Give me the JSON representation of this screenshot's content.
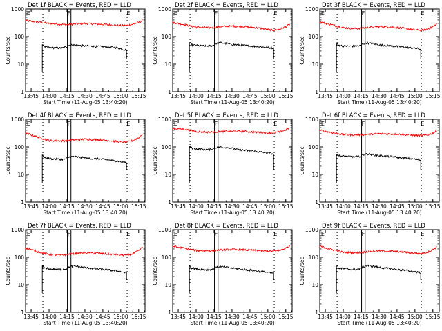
{
  "chart_data": [
    {
      "type": "line",
      "title": "Det 1f BLACK = Events, RED = LLD",
      "xlabel": "Start Time (11-Aug-05 13:40:20)",
      "ylabel": "Counts/sec",
      "y_scale": "log",
      "ylim": [
        1,
        1000
      ],
      "y_tick_labels": [
        "1",
        "10",
        "100",
        "1000"
      ],
      "x_range_min": [
        0,
        100
      ],
      "x_tick_labels": [
        "13:45",
        "14:00",
        "14:15",
        "14:30",
        "14:45",
        "15:00",
        "15:15"
      ],
      "x_ticks_min": [
        4.67,
        19.67,
        34.67,
        49.67,
        64.67,
        79.67,
        94.67
      ],
      "flag_labels": [
        "E",
        "F",
        "E"
      ],
      "series": [
        {
          "color": "#ff0000",
          "x": [
            0,
            10,
            20,
            30,
            35,
            40,
            50,
            60,
            70,
            80,
            85,
            90,
            95,
            98
          ],
          "y": [
            380,
            340,
            300,
            280,
            270,
            285,
            300,
            285,
            270,
            250,
            255,
            280,
            330,
            380
          ]
        },
        {
          "color": "#000000",
          "x": [
            14,
            16,
            20,
            25,
            30,
            34,
            36,
            40,
            45,
            50,
            55,
            60,
            65,
            70,
            75,
            80,
            84.5
          ],
          "y": [
            55,
            42,
            40,
            39,
            38,
            42,
            48,
            50,
            48,
            46,
            45,
            44,
            43,
            42,
            40,
            36,
            32
          ]
        }
      ],
      "vline_dotted_min": [
        14.5,
        85
      ],
      "vline_solid_min": [
        35,
        38
      ]
    },
    {
      "type": "line",
      "title": "Det 2f BLACK = Events, RED = LLD",
      "xlabel": "Start Time (11-Aug-05 13:40:20)",
      "ylabel": "Counts/sec",
      "y_scale": "log",
      "ylim": [
        1,
        1000
      ],
      "y_tick_labels": [
        "1",
        "10",
        "100",
        "1000"
      ],
      "x_range_min": [
        0,
        100
      ],
      "x_tick_labels": [
        "13:45",
        "14:00",
        "14:15",
        "14:30",
        "14:45",
        "15:00",
        "15:15"
      ],
      "x_ticks_min": [
        4.67,
        19.67,
        34.67,
        49.67,
        64.67,
        79.67,
        94.67
      ],
      "flag_labels": [
        "E",
        "F",
        "E"
      ],
      "series": [
        {
          "color": "#ff0000",
          "x": [
            0,
            10,
            20,
            30,
            35,
            40,
            50,
            60,
            70,
            80,
            85,
            90,
            95,
            98
          ],
          "y": [
            330,
            270,
            220,
            210,
            215,
            230,
            240,
            230,
            210,
            180,
            170,
            190,
            230,
            280
          ]
        },
        {
          "color": "#000000",
          "x": [
            14,
            16,
            20,
            25,
            30,
            34,
            36,
            40,
            45,
            50,
            55,
            60,
            65,
            70,
            75,
            80,
            84.5
          ],
          "y": [
            60,
            50,
            48,
            46,
            46,
            48,
            55,
            60,
            56,
            52,
            50,
            48,
            46,
            44,
            42,
            40,
            38
          ]
        }
      ],
      "vline_dotted_min": [
        14.5,
        85
      ],
      "vline_solid_min": [
        35,
        38
      ]
    },
    {
      "type": "line",
      "title": "Det 3f BLACK = Events, RED = LLD",
      "xlabel": "Start Time (11-Aug-05 13:40:20)",
      "ylabel": "Counts/sec",
      "y_scale": "log",
      "ylim": [
        1,
        1000
      ],
      "y_tick_labels": [
        "1",
        "10",
        "100",
        "1000"
      ],
      "x_range_min": [
        0,
        100
      ],
      "x_tick_labels": [
        "13:45",
        "14:00",
        "14:15",
        "14:30",
        "14:45",
        "15:00",
        "15:15"
      ],
      "x_ticks_min": [
        4.67,
        19.67,
        34.67,
        49.67,
        64.67,
        79.67,
        94.67
      ],
      "flag_labels": [
        "E",
        "F",
        "E"
      ],
      "series": [
        {
          "color": "#ff0000",
          "x": [
            0,
            10,
            20,
            30,
            35,
            40,
            50,
            60,
            70,
            80,
            85,
            90,
            95,
            98
          ],
          "y": [
            340,
            270,
            210,
            195,
            200,
            215,
            230,
            225,
            200,
            175,
            170,
            185,
            230,
            290
          ]
        },
        {
          "color": "#000000",
          "x": [
            14,
            16,
            20,
            25,
            30,
            34,
            36,
            40,
            45,
            50,
            55,
            60,
            65,
            70,
            75,
            80,
            84.5
          ],
          "y": [
            55,
            48,
            46,
            45,
            45,
            47,
            55,
            58,
            55,
            50,
            48,
            46,
            44,
            42,
            40,
            38,
            35
          ]
        }
      ],
      "vline_dotted_min": [
        14.5,
        85
      ],
      "vline_solid_min": [
        35,
        38
      ]
    },
    {
      "type": "line",
      "title": "Det 4f BLACK = Events, RED = LLD",
      "xlabel": "Start Time (11-Aug-05 13:40:20)",
      "ylabel": "Counts/sec",
      "y_scale": "log",
      "ylim": [
        1,
        1000
      ],
      "y_tick_labels": [
        "1",
        "10",
        "100",
        "1000"
      ],
      "x_range_min": [
        0,
        100
      ],
      "x_tick_labels": [
        "13:45",
        "14:00",
        "14:15",
        "14:30",
        "14:45",
        "15:00",
        "15:15"
      ],
      "x_ticks_min": [
        4.67,
        19.67,
        34.67,
        49.67,
        64.67,
        79.67,
        94.67
      ],
      "flag_labels": [
        "E",
        "F",
        "E"
      ],
      "series": [
        {
          "color": "#ff0000",
          "x": [
            0,
            10,
            20,
            30,
            35,
            40,
            50,
            60,
            70,
            80,
            85,
            90,
            95,
            98
          ],
          "y": [
            320,
            230,
            170,
            165,
            170,
            180,
            190,
            185,
            170,
            150,
            150,
            170,
            220,
            300
          ]
        },
        {
          "color": "#000000",
          "x": [
            14,
            16,
            20,
            25,
            30,
            34,
            36,
            40,
            45,
            50,
            55,
            60,
            65,
            70,
            75,
            80,
            84.5
          ],
          "y": [
            50,
            40,
            38,
            36,
            35,
            37,
            42,
            45,
            42,
            40,
            38,
            37,
            35,
            33,
            31,
            29,
            27
          ]
        }
      ],
      "vline_dotted_min": [
        14.5,
        85
      ],
      "vline_solid_min": [
        35,
        38
      ]
    },
    {
      "type": "line",
      "title": "Det 5f BLACK = Events, RED = LLD",
      "xlabel": "Start Time (11-Aug-05 13:40:20)",
      "ylabel": "Counts/sec",
      "y_scale": "log",
      "ylim": [
        1,
        1000
      ],
      "y_tick_labels": [
        "1",
        "10",
        "100",
        "1000"
      ],
      "x_range_min": [
        0,
        100
      ],
      "x_tick_labels": [
        "13:45",
        "14:00",
        "14:15",
        "14:30",
        "14:45",
        "15:00",
        "15:15"
      ],
      "x_ticks_min": [
        4.67,
        19.67,
        34.67,
        49.67,
        64.67,
        79.67,
        94.67
      ],
      "flag_labels": [
        "E",
        "F",
        "E"
      ],
      "series": [
        {
          "color": "#ff0000",
          "x": [
            0,
            10,
            20,
            30,
            35,
            40,
            50,
            60,
            70,
            80,
            85,
            90,
            95,
            98
          ],
          "y": [
            470,
            440,
            360,
            340,
            345,
            360,
            370,
            365,
            340,
            320,
            325,
            350,
            420,
            480
          ]
        },
        {
          "color": "#000000",
          "x": [
            14,
            16,
            20,
            25,
            30,
            34,
            36,
            40,
            45,
            50,
            55,
            60,
            65,
            70,
            75,
            80,
            84.5
          ],
          "y": [
            105,
            90,
            85,
            82,
            80,
            85,
            95,
            100,
            95,
            88,
            80,
            75,
            72,
            68,
            64,
            60,
            55
          ]
        }
      ],
      "vline_dotted_min": [
        14.5,
        85
      ],
      "vline_solid_min": [
        35,
        38
      ]
    },
    {
      "type": "line",
      "title": "Det 6f BLACK = Events, RED = LLD",
      "xlabel": "Start Time (11-Aug-05 13:40:20)",
      "ylabel": "Counts/sec",
      "y_scale": "log",
      "ylim": [
        1,
        1000
      ],
      "y_tick_labels": [
        "1",
        "10",
        "100",
        "1000"
      ],
      "x_range_min": [
        0,
        100
      ],
      "x_tick_labels": [
        "13:45",
        "14:00",
        "14:15",
        "14:30",
        "14:45",
        "15:00",
        "15:15"
      ],
      "x_ticks_min": [
        4.67,
        19.67,
        34.67,
        49.67,
        64.67,
        79.67,
        94.67
      ],
      "flag_labels": [
        "E",
        "F",
        "E"
      ],
      "series": [
        {
          "color": "#ff0000",
          "x": [
            0,
            10,
            20,
            30,
            35,
            40,
            50,
            60,
            70,
            80,
            85,
            90,
            95,
            98
          ],
          "y": [
            400,
            330,
            280,
            270,
            275,
            285,
            300,
            295,
            280,
            260,
            255,
            270,
            320,
            380
          ]
        },
        {
          "color": "#000000",
          "x": [
            14,
            16,
            20,
            25,
            30,
            34,
            36,
            40,
            45,
            50,
            55,
            60,
            65,
            70,
            75,
            80,
            84.5
          ],
          "y": [
            55,
            48,
            46,
            45,
            44,
            46,
            52,
            55,
            52,
            48,
            46,
            44,
            42,
            40,
            38,
            36,
            33
          ]
        }
      ],
      "vline_dotted_min": [
        14.5,
        85
      ],
      "vline_solid_min": [
        35,
        38
      ]
    },
    {
      "type": "line",
      "title": "Det 7f BLACK = Events, RED = LLD",
      "xlabel": "Start Time (11-Aug-05 13:40:20)",
      "ylabel": "Counts/sec",
      "y_scale": "log",
      "ylim": [
        1,
        1000
      ],
      "y_tick_labels": [
        "1",
        "10",
        "100",
        "1000"
      ],
      "x_range_min": [
        0,
        100
      ],
      "x_tick_labels": [
        "13:45",
        "14:00",
        "14:15",
        "14:30",
        "14:45",
        "15:00",
        "15:15"
      ],
      "x_ticks_min": [
        4.67,
        19.67,
        34.67,
        49.67,
        64.67,
        79.67,
        94.67
      ],
      "flag_labels": [
        "E",
        "F",
        "E"
      ],
      "series": [
        {
          "color": "#ff0000",
          "x": [
            0,
            10,
            20,
            30,
            35,
            40,
            50,
            60,
            70,
            80,
            85,
            90,
            95,
            98
          ],
          "y": [
            220,
            160,
            125,
            120,
            125,
            135,
            145,
            140,
            130,
            120,
            120,
            135,
            175,
            230
          ]
        },
        {
          "color": "#000000",
          "x": [
            14,
            16,
            20,
            25,
            30,
            34,
            36,
            40,
            45,
            50,
            55,
            60,
            65,
            70,
            75,
            80,
            84.5
          ],
          "y": [
            50,
            40,
            38,
            37,
            36,
            38,
            44,
            48,
            45,
            42,
            40,
            38,
            36,
            34,
            32,
            30,
            27
          ]
        }
      ],
      "vline_dotted_min": [
        14.5,
        85
      ],
      "vline_solid_min": [
        35,
        38
      ]
    },
    {
      "type": "line",
      "title": "Det 8f BLACK = Events, RED = LLD",
      "xlabel": "Start Time (11-Aug-05 13:40:20)",
      "ylabel": "Counts/sec",
      "y_scale": "log",
      "ylim": [
        1,
        1000
      ],
      "y_tick_labels": [
        "1",
        "10",
        "100",
        "1000"
      ],
      "x_range_min": [
        0,
        100
      ],
      "x_tick_labels": [
        "13:45",
        "14:00",
        "14:15",
        "14:30",
        "14:45",
        "15:00",
        "15:15"
      ],
      "x_ticks_min": [
        4.67,
        19.67,
        34.67,
        49.67,
        64.67,
        79.67,
        94.67
      ],
      "flag_labels": [
        "E",
        "F",
        "E"
      ],
      "series": [
        {
          "color": "#ff0000",
          "x": [
            0,
            10,
            20,
            30,
            35,
            40,
            50,
            60,
            70,
            80,
            85,
            90,
            95,
            98
          ],
          "y": [
            250,
            210,
            175,
            170,
            175,
            185,
            190,
            185,
            175,
            165,
            165,
            180,
            215,
            260
          ]
        },
        {
          "color": "#000000",
          "x": [
            14,
            16,
            20,
            25,
            30,
            34,
            36,
            40,
            45,
            50,
            55,
            60,
            65,
            70,
            75,
            80,
            84.5
          ],
          "y": [
            50,
            40,
            38,
            36,
            35,
            37,
            42,
            46,
            43,
            40,
            38,
            36,
            34,
            32,
            30,
            28,
            26
          ]
        }
      ],
      "vline_dotted_min": [
        14.5,
        85
      ],
      "vline_solid_min": [
        35,
        38
      ]
    },
    {
      "type": "line",
      "title": "Det 9f BLACK = Events, RED = LLD",
      "xlabel": "Start Time (11-Aug-05 13:40:20)",
      "ylabel": "Counts/sec",
      "y_scale": "log",
      "ylim": [
        1,
        1000
      ],
      "y_tick_labels": [
        "1",
        "10",
        "100",
        "1000"
      ],
      "x_range_min": [
        0,
        100
      ],
      "x_tick_labels": [
        "13:45",
        "14:00",
        "14:15",
        "14:30",
        "14:45",
        "15:00",
        "15:15"
      ],
      "x_ticks_min": [
        4.67,
        19.67,
        34.67,
        49.67,
        64.67,
        79.67,
        94.67
      ],
      "flag_labels": [
        "E",
        "F",
        "E"
      ],
      "series": [
        {
          "color": "#ff0000",
          "x": [
            0,
            10,
            20,
            30,
            35,
            40,
            50,
            60,
            70,
            80,
            85,
            90,
            95,
            98
          ],
          "y": [
            250,
            190,
            150,
            145,
            150,
            160,
            170,
            165,
            155,
            140,
            135,
            150,
            190,
            240
          ]
        },
        {
          "color": "#000000",
          "x": [
            14,
            16,
            20,
            25,
            30,
            34,
            36,
            40,
            45,
            50,
            55,
            60,
            65,
            70,
            75,
            80,
            84.5
          ],
          "y": [
            50,
            40,
            38,
            37,
            36,
            38,
            45,
            50,
            46,
            43,
            40,
            38,
            36,
            34,
            32,
            30,
            28
          ]
        }
      ],
      "vline_dotted_min": [
        14.5,
        85
      ],
      "vline_solid_min": [
        35,
        38
      ]
    }
  ]
}
